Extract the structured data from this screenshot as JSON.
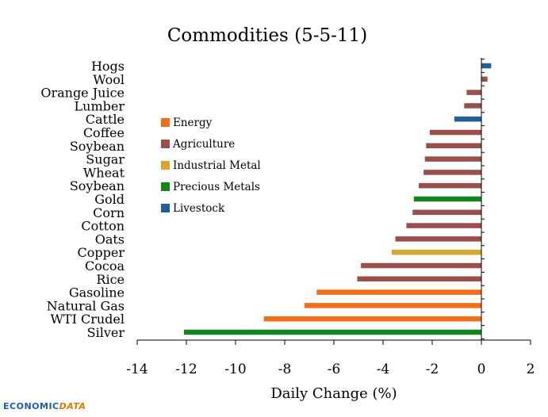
{
  "chart_data": {
    "type": "bar",
    "orientation": "horizontal",
    "title": "Commodities (5-5-11)",
    "xlabel": "Daily Change (%)",
    "ylabel": "",
    "xlim": [
      -14,
      2
    ],
    "xticks": [
      "-14",
      "-12",
      "-10",
      "-8",
      "-6",
      "-4",
      "-2",
      "0",
      "2"
    ],
    "grid": false,
    "legend_position": "center-left",
    "legend": [
      {
        "name": "Energy",
        "color": "#f26f1a"
      },
      {
        "name": "Agriculture",
        "color": "#9b4f4a"
      },
      {
        "name": "Industrial Metal",
        "color": "#d4a82c"
      },
      {
        "name": "Precious Metals",
        "color": "#13851a"
      },
      {
        "name": "Livestock",
        "color": "#1f5f9a"
      }
    ],
    "bars": [
      {
        "label": "Hogs",
        "value": 0.4,
        "category": "Livestock"
      },
      {
        "label": "Wool",
        "value": 0.25,
        "category": "Agriculture"
      },
      {
        "label": "Orange Juice",
        "value": -0.6,
        "category": "Agriculture"
      },
      {
        "label": "Lumber",
        "value": -0.7,
        "category": "Agriculture"
      },
      {
        "label": "Cattle",
        "value": -1.1,
        "category": "Livestock"
      },
      {
        "label": "Coffee",
        "value": -2.1,
        "category": "Agriculture"
      },
      {
        "label": "Soybean",
        "value": -2.25,
        "category": "Agriculture"
      },
      {
        "label": "Sugar",
        "value": -2.3,
        "category": "Agriculture"
      },
      {
        "label": "Wheat",
        "value": -2.35,
        "category": "Agriculture"
      },
      {
        "label": "Soybean",
        "value": -2.55,
        "category": "Agriculture"
      },
      {
        "label": "Gold",
        "value": -2.75,
        "category": "Precious Metals"
      },
      {
        "label": "Corn",
        "value": -2.8,
        "category": "Agriculture"
      },
      {
        "label": "Cotton",
        "value": -3.05,
        "category": "Agriculture"
      },
      {
        "label": "Oats",
        "value": -3.5,
        "category": "Agriculture"
      },
      {
        "label": "Copper",
        "value": -3.65,
        "category": "Industrial Metal"
      },
      {
        "label": "Cocoa",
        "value": -4.9,
        "category": "Agriculture"
      },
      {
        "label": "Rice",
        "value": -5.05,
        "category": "Agriculture"
      },
      {
        "label": "Gasoline",
        "value": -6.7,
        "category": "Energy"
      },
      {
        "label": "Natural Gas",
        "value": -7.2,
        "category": "Energy"
      },
      {
        "label": "WTI Crudel",
        "value": -8.85,
        "category": "Energy"
      },
      {
        "label": "Silver",
        "value": -12.1,
        "category": "Precious Metals"
      }
    ]
  },
  "branding": {
    "logo_part1": "ECONOMIC",
    "logo_part2": "DATA"
  }
}
